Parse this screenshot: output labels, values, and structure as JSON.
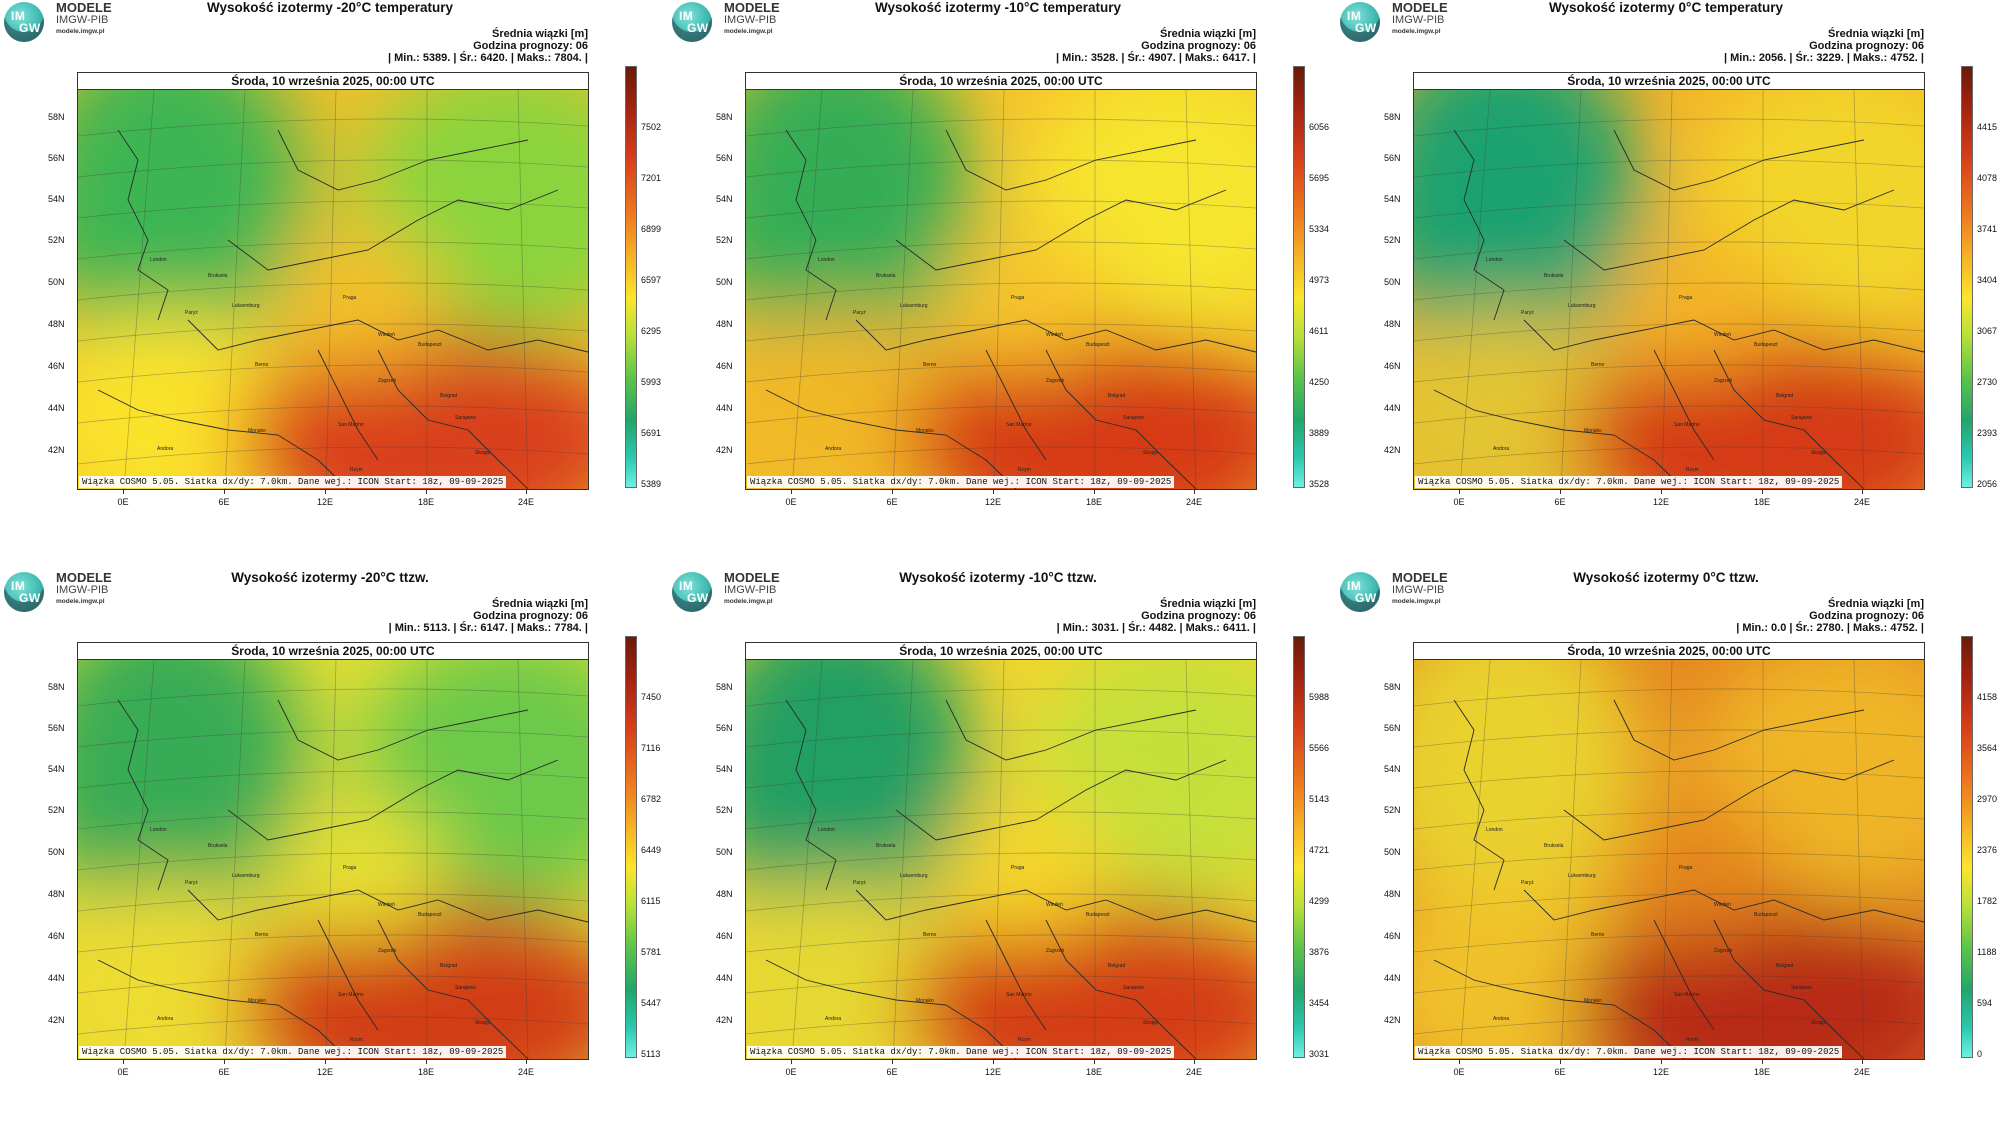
{
  "logo": {
    "badge_top": "IM",
    "badge_bottom": "GW",
    "name": "MODELE",
    "org": "IMGW-PIB",
    "url": "modele.imgw.pl"
  },
  "panels": [
    {
      "title": "Wysokość izotermy -20°C temperatury",
      "info_line1": "Średnia wiązki [m]",
      "info_line2": "Godzina prognozy: 06",
      "info_line3": "| Min.:    5389. | Śr.:    6420. | Maks.:    7804. |",
      "date": "Środa, 10 września 2025, 00:00 UTC",
      "footer": "Wiązka COSMO 5.05. Siatka dx/dy: 7.0km. Dane wej.: ICON Start: 18z, 09-09-2025",
      "scale": [
        "7502",
        "7201",
        "6899",
        "6597",
        "6295",
        "5993",
        "5691",
        "5389"
      ],
      "palette": {
        "nw": "#3db553",
        "ne": "#8ad43e",
        "sw": "#fbe22c",
        "se": "#d9401a",
        "center": "#f3c02a"
      }
    },
    {
      "title": "Wysokość izotermy -10°C temperatury",
      "info_line1": "Średnia wiązki [m]",
      "info_line2": "Godzina prognozy: 06",
      "info_line3": "| Min.:    3528. | Śr.:    4907. | Maks.:    6417. |",
      "date": "Środa, 10 września 2025, 00:00 UTC",
      "footer": "Wiązka COSMO 5.05. Siatka dx/dy: 7.0km. Dane wej.: ICON Start: 18z, 09-09-2025",
      "scale": [
        "6056",
        "5695",
        "5334",
        "4973",
        "4611",
        "4250",
        "3889",
        "3528"
      ],
      "palette": {
        "nw": "#35ad55",
        "ne": "#f6e52e",
        "sw": "#f1b828",
        "se": "#d63b17",
        "center": "#f6c42a"
      }
    },
    {
      "title": "Wysokość izotermy 0°C temperatury",
      "info_line1": "Średnia wiązki [m]",
      "info_line2": "Godzina prognozy: 06",
      "info_line3": "| Min.:    2056. | Śr.:    3229. | Maks.:    4752. |",
      "date": "Środa, 10 września 2025, 00:00 UTC",
      "footer": "Wiązka COSMO 5.05. Siatka dx/dy: 7.0km. Dane wej.: ICON Start: 18z, 09-09-2025",
      "scale": [
        "4415",
        "4078",
        "3741",
        "3404",
        "3067",
        "2730",
        "2393",
        "2056"
      ],
      "palette": {
        "nw": "#1ea270",
        "ne": "#f2d52c",
        "sw": "#e3c430",
        "se": "#d43a16",
        "center": "#f4b426"
      }
    },
    {
      "title": "Wysokość izotermy -20°C ttzw.",
      "info_line1": "Średnia wiązki [m]",
      "info_line2": "Godzina prognozy: 06",
      "info_line3": "| Min.:    5113. | Śr.:    6147. | Maks.:    7784. |",
      "date": "Środa, 10 września 2025, 00:00 UTC",
      "footer": "Wiązka COSMO 5.05. Siatka dx/dy: 7.0km. Dane wej.: ICON Start: 18z, 09-09-2025",
      "scale": [
        "7450",
        "7116",
        "6782",
        "6449",
        "6115",
        "5781",
        "5447",
        "5113"
      ],
      "palette": {
        "nw": "#37ab55",
        "ne": "#6cc94a",
        "sw": "#eddc30",
        "se": "#d23c17",
        "center": "#e6df33"
      }
    },
    {
      "title": "Wysokość izotermy -10°C ttzw.",
      "info_line1": "Średnia wiązki [m]",
      "info_line2": "Godzina prognozy: 06",
      "info_line3": "| Min.:    3031. | Śr.:    4482. | Maks.:    6411. |",
      "date": "Środa, 10 września 2025, 00:00 UTC",
      "footer": "Wiązka COSMO 5.05. Siatka dx/dy: 7.0km. Dane wej.: ICON Start: 18z, 09-09-2025",
      "scale": [
        "5988",
        "5566",
        "5143",
        "4721",
        "4299",
        "3876",
        "3454",
        "3031"
      ],
      "palette": {
        "nw": "#239f62",
        "ne": "#c6e03a",
        "sw": "#e6d833",
        "se": "#d43c17",
        "center": "#f5d52c"
      }
    },
    {
      "title": "Wysokość izotermy 0°C ttzw.",
      "info_line1": "Średnia wiązki [m]",
      "info_line2": "Godzina prognozy: 06",
      "info_line3": "| Min.:    0.0 | Śr.:    2780. | Maks.:    4752. |",
      "date": "Środa, 10 września 2025, 00:00 UTC",
      "footer": "Wiązka COSMO 5.05. Siatka dx/dy: 7.0km. Dane wej.: ICON Start: 18z, 09-09-2025",
      "scale": [
        "4158",
        "3564",
        "2970",
        "2376",
        "1782",
        "1188",
        "594",
        "0"
      ],
      "palette": {
        "nw": "#e9d12f",
        "ne": "#efb528",
        "sw": "#f0c12a",
        "se": "#b82a12",
        "center": "#e4851f"
      }
    }
  ],
  "lat_labels": [
    "58N",
    "56N",
    "54N",
    "52N",
    "50N",
    "48N",
    "46N",
    "44N",
    "42N"
  ],
  "lon_labels": [
    "0E",
    "6E",
    "12E",
    "18E",
    "24E"
  ],
  "cities": [
    "London",
    "Bruksela",
    "Paryż",
    "Luksemburg",
    "Praga",
    "Wiedeń",
    "Budapeszt",
    "Berno",
    "Zagrzeb",
    "Belgrad",
    "San Marino",
    "Sarajewo",
    "Monako",
    "Andora",
    "Skopje",
    "Rzym"
  ],
  "colorbar_colors": [
    "#6a1a0a",
    "#d8401a",
    "#f6b125",
    "#fbe52c",
    "#5cc44a",
    "#23a56a",
    "#6ef0e2"
  ]
}
